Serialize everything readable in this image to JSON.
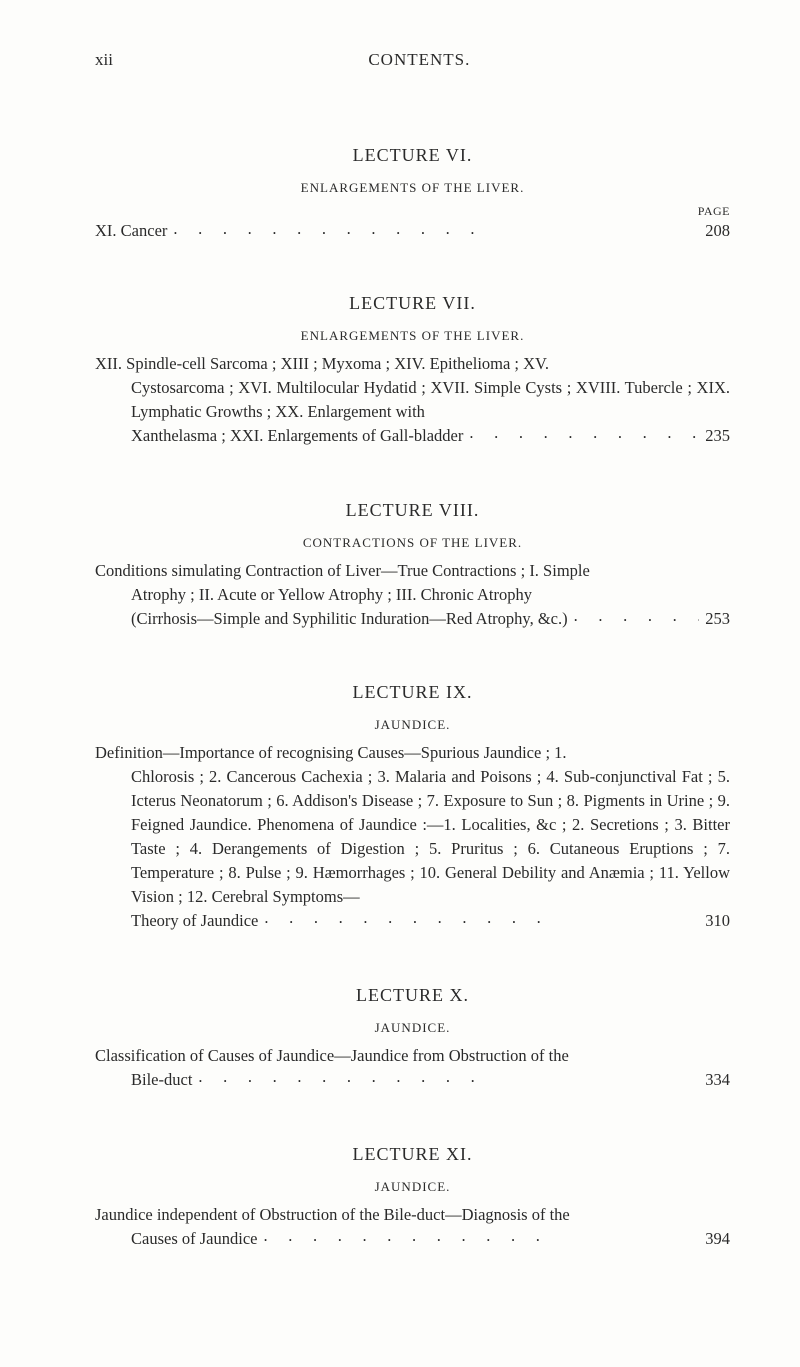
{
  "header": {
    "left": "xii",
    "center": "CONTENTS."
  },
  "page_label": "PAGE",
  "lectures": [
    {
      "title": "LECTURE VI.",
      "sub": "ENLARGEMENTS OF THE LIVER.",
      "entry_lead": "XI. Cancer",
      "entry_page": "208"
    },
    {
      "title": "LECTURE VII.",
      "sub": "ENLARGEMENTS OF THE LIVER.",
      "first": "XII. Spindle-cell Sarcoma ; XIII ; Myxoma ; XIV. Epithelioma ; XV.",
      "body": "Cystosarcoma ; XVI. Multilocular Hydatid ; XVII. Simple Cysts ; XVIII. Tubercle ; XIX. Lymphatic Growths ; XX. Enlargement with",
      "last": "Xanthelasma ; XXI. Enlargements of Gall-bladder",
      "page": "235"
    },
    {
      "title": "LECTURE VIII.",
      "sub": "CONTRACTIONS OF THE LIVER.",
      "first": "Conditions simulating Contraction of Liver—True Contractions ; I. Simple",
      "body": "Atrophy ; II. Acute or Yellow Atrophy ; III. Chronic Atrophy",
      "last": "(Cirrhosis—Simple and Syphilitic Induration—Red Atrophy, &c.)",
      "page": "253"
    },
    {
      "title": "LECTURE IX.",
      "sub": "JAUNDICE.",
      "first": "Definition—Importance of recognising Causes—Spurious Jaundice ; 1.",
      "body": "Chlorosis ; 2. Cancerous Cachexia ; 3. Malaria and Poisons ; 4. Sub-conjunctival Fat ; 5. Icterus Neonatorum ; 6. Addison's Disease ; 7. Exposure to Sun ; 8. Pigments in Urine ; 9. Feigned Jaundice. Phenomena of Jaundice :—1. Localities, &c ; 2. Secretions ; 3. Bitter Taste ; 4. Derangements of Digestion ; 5. Pruritus ; 6. Cutaneous Eruptions ; 7. Temperature ; 8. Pulse ; 9. Hæmorrhages ; 10. General Debility and Anæmia ; 11. Yellow Vision ; 12. Cerebral Symptoms—",
      "last": "Theory of Jaundice",
      "page": "310"
    },
    {
      "title": "LECTURE X.",
      "sub": "JAUNDICE.",
      "first": "Classification of Causes of Jaundice—Jaundice from Obstruction of the",
      "last": "Bile-duct",
      "page": "334"
    },
    {
      "title": "LECTURE XI.",
      "sub": "JAUNDICE.",
      "first": "Jaundice independent of Obstruction of the Bile-duct—Diagnosis of the",
      "last": "Causes of Jaundice",
      "page": "394"
    }
  ],
  "colors": {
    "background": "#fdfdfb",
    "text": "#2a2a2a"
  },
  "typography": {
    "body_fontsize_pt": 12.5,
    "title_fontsize_pt": 13.5,
    "sub_fontsize_pt": 10,
    "font_family": "Times New Roman"
  }
}
